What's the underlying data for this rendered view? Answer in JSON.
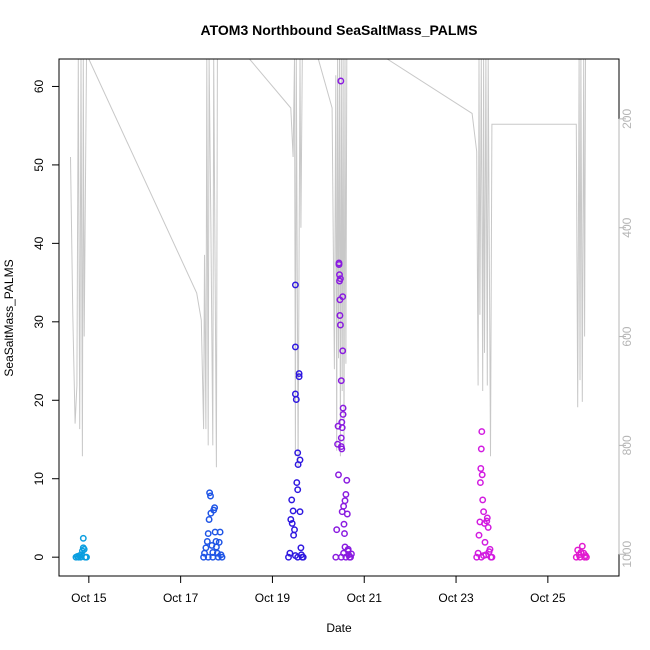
{
  "chart_data": {
    "type": "scatter",
    "title": "ATOM3 Northbound SeaSaltMass_PALMS",
    "xlabel": "Date",
    "ylabel": "SeaSaltMass_PALMS",
    "x_ticks": [
      "Oct 15",
      "Oct 17",
      "Oct 19",
      "Oct 21",
      "Oct 23",
      "Oct 25"
    ],
    "y_ticks": [
      0,
      10,
      20,
      30,
      40,
      50,
      60
    ],
    "y_right_ticks": [
      200,
      400,
      600,
      800,
      1000
    ],
    "xlim": [
      14.35,
      26.55
    ],
    "ylim": [
      -2.4,
      63.5
    ],
    "y_right_lim": [
      1040,
      90
    ],
    "colors": {
      "altitude_line": "#c8c8c8",
      "right_axis": "#b5b5b5",
      "axis": "#000000",
      "day1": "#0a9ee0",
      "day2": "#1f55e6",
      "day3": "#2f18e0",
      "day4": "#8a1be0",
      "day5": "#d21be0",
      "day6": "#e11ad0"
    },
    "series": [
      {
        "color_key": "day1",
        "points": [
          [
            14.72,
            0
          ],
          [
            14.75,
            0.1
          ],
          [
            14.78,
            0
          ],
          [
            14.8,
            0.2
          ],
          [
            14.82,
            0
          ],
          [
            14.84,
            0.3
          ],
          [
            14.86,
            0.8
          ],
          [
            14.88,
            1.2
          ],
          [
            14.88,
            2.4
          ],
          [
            14.9,
            1.0
          ],
          [
            14.92,
            0
          ],
          [
            14.95,
            0
          ]
        ]
      },
      {
        "color_key": "day2",
        "points": [
          [
            17.5,
            0
          ],
          [
            17.52,
            0.5
          ],
          [
            17.55,
            1.2
          ],
          [
            17.58,
            2.0
          ],
          [
            17.6,
            3.0
          ],
          [
            17.62,
            4.8
          ],
          [
            17.63,
            8.2
          ],
          [
            17.65,
            7.8
          ],
          [
            17.66,
            5.6
          ],
          [
            17.68,
            1.5
          ],
          [
            17.7,
            0
          ],
          [
            17.72,
            6.0
          ],
          [
            17.74,
            6.3
          ],
          [
            17.75,
            3.2
          ],
          [
            17.77,
            2.0
          ],
          [
            17.78,
            1.3
          ],
          [
            17.8,
            0.5
          ],
          [
            17.82,
            0
          ],
          [
            17.84,
            1.9
          ],
          [
            17.86,
            3.2
          ],
          [
            17.88,
            0.3
          ],
          [
            17.9,
            0
          ],
          [
            17.6,
            0
          ],
          [
            17.7,
            0.6
          ]
        ]
      },
      {
        "color_key": "day3",
        "points": [
          [
            19.35,
            0
          ],
          [
            19.38,
            0.5
          ],
          [
            19.4,
            4.8
          ],
          [
            19.42,
            7.3
          ],
          [
            19.43,
            4.3
          ],
          [
            19.45,
            5.9
          ],
          [
            19.46,
            2.8
          ],
          [
            19.48,
            3.5
          ],
          [
            19.5,
            20.8
          ],
          [
            19.5,
            34.7
          ],
          [
            19.5,
            26.8
          ],
          [
            19.52,
            20.1
          ],
          [
            19.53,
            9.5
          ],
          [
            19.55,
            13.3
          ],
          [
            19.55,
            8.6
          ],
          [
            19.56,
            11.8
          ],
          [
            19.58,
            23.4
          ],
          [
            19.58,
            23.0
          ],
          [
            19.6,
            12.4
          ],
          [
            19.6,
            5.8
          ],
          [
            19.62,
            1.2
          ],
          [
            19.63,
            0.3
          ],
          [
            19.65,
            0
          ],
          [
            19.67,
            0
          ],
          [
            19.5,
            0.2
          ],
          [
            19.55,
            0
          ]
        ]
      },
      {
        "color_key": "day4",
        "points": [
          [
            20.38,
            0
          ],
          [
            20.4,
            3.5
          ],
          [
            20.42,
            14.4
          ],
          [
            20.43,
            16.7
          ],
          [
            20.44,
            10.5
          ],
          [
            20.45,
            37.3
          ],
          [
            20.46,
            36.0
          ],
          [
            20.46,
            35.2
          ],
          [
            20.47,
            32.8
          ],
          [
            20.47,
            30.8
          ],
          [
            20.48,
            29.6
          ],
          [
            20.48,
            35.5
          ],
          [
            20.49,
            60.7
          ],
          [
            20.5,
            15.2
          ],
          [
            20.5,
            14.1
          ],
          [
            20.51,
            17.2
          ],
          [
            20.51,
            13.8
          ],
          [
            20.52,
            16.5
          ],
          [
            20.52,
            5.8
          ],
          [
            20.53,
            33.2
          ],
          [
            20.53,
            26.3
          ],
          [
            20.54,
            19.0
          ],
          [
            20.54,
            18.2
          ],
          [
            20.55,
            6.5
          ],
          [
            20.56,
            4.2
          ],
          [
            20.57,
            3.0
          ],
          [
            20.58,
            7.2
          ],
          [
            20.6,
            8.0
          ],
          [
            20.62,
            9.8
          ],
          [
            20.63,
            5.5
          ],
          [
            20.65,
            1.0
          ],
          [
            20.66,
            0.3
          ],
          [
            20.68,
            0
          ],
          [
            20.7,
            0
          ],
          [
            20.72,
            0.4
          ],
          [
            20.5,
            0
          ],
          [
            20.55,
            0.5
          ],
          [
            20.6,
            0
          ],
          [
            20.65,
            0.8
          ],
          [
            20.58,
            1.3
          ],
          [
            20.45,
            37.5
          ],
          [
            20.5,
            22.5
          ]
        ]
      },
      {
        "color_key": "day5",
        "points": [
          [
            23.45,
            0
          ],
          [
            23.48,
            0.5
          ],
          [
            23.5,
            2.8
          ],
          [
            23.52,
            4.5
          ],
          [
            23.53,
            9.5
          ],
          [
            23.54,
            11.3
          ],
          [
            23.55,
            13.8
          ],
          [
            23.56,
            16.0
          ],
          [
            23.57,
            10.5
          ],
          [
            23.58,
            7.3
          ],
          [
            23.6,
            5.8
          ],
          [
            23.62,
            4.3
          ],
          [
            23.63,
            1.9
          ],
          [
            23.65,
            0.3
          ],
          [
            23.67,
            4.6
          ],
          [
            23.68,
            5.0
          ],
          [
            23.7,
            3.8
          ],
          [
            23.72,
            0.7
          ],
          [
            23.74,
            1.0
          ],
          [
            23.76,
            0
          ],
          [
            23.78,
            0
          ],
          [
            23.55,
            0
          ],
          [
            23.6,
            0.2
          ]
        ]
      },
      {
        "color_key": "day6",
        "points": [
          [
            25.62,
            0
          ],
          [
            25.65,
            0.9
          ],
          [
            25.68,
            0.3
          ],
          [
            25.7,
            0
          ],
          [
            25.72,
            0.6
          ],
          [
            25.75,
            1.4
          ],
          [
            25.78,
            0.5
          ],
          [
            25.8,
            0
          ],
          [
            25.82,
            0.2
          ],
          [
            25.84,
            0
          ]
        ]
      }
    ],
    "altitude_track": [
      [
        14.6,
        270
      ],
      [
        14.65,
        560
      ],
      [
        14.7,
        760
      ],
      [
        14.74,
        690
      ],
      [
        14.77,
        70
      ],
      [
        14.8,
        770
      ],
      [
        14.83,
        90
      ],
      [
        14.86,
        820
      ],
      [
        14.88,
        70
      ],
      [
        14.9,
        600
      ],
      [
        14.95,
        70
      ],
      [
        15.0,
        70
      ],
      [
        17.35,
        520
      ],
      [
        17.45,
        570
      ],
      [
        17.5,
        770
      ],
      [
        17.52,
        450
      ],
      [
        17.55,
        770
      ],
      [
        17.57,
        90
      ],
      [
        17.6,
        800
      ],
      [
        17.62,
        70
      ],
      [
        17.66,
        400
      ],
      [
        17.7,
        800
      ],
      [
        17.72,
        70
      ],
      [
        17.78,
        840
      ],
      [
        17.8,
        70
      ],
      [
        17.85,
        70
      ],
      [
        18.5,
        70
      ],
      [
        19.4,
        180
      ],
      [
        19.45,
        270
      ],
      [
        19.48,
        70
      ],
      [
        19.5,
        820
      ],
      [
        19.52,
        70
      ],
      [
        19.56,
        840
      ],
      [
        19.6,
        70
      ],
      [
        19.62,
        400
      ],
      [
        19.65,
        70
      ],
      [
        20.0,
        70
      ],
      [
        20.3,
        180
      ],
      [
        20.35,
        660
      ],
      [
        20.38,
        120
      ],
      [
        20.4,
        810
      ],
      [
        20.42,
        70
      ],
      [
        20.44,
        640
      ],
      [
        20.46,
        70
      ],
      [
        20.48,
        820
      ],
      [
        20.5,
        70
      ],
      [
        20.52,
        700
      ],
      [
        20.54,
        70
      ],
      [
        20.56,
        800
      ],
      [
        20.58,
        70
      ],
      [
        20.6,
        650
      ],
      [
        20.62,
        70
      ],
      [
        20.65,
        70
      ],
      [
        21.5,
        70
      ],
      [
        23.35,
        190
      ],
      [
        23.45,
        260
      ],
      [
        23.48,
        690
      ],
      [
        23.5,
        70
      ],
      [
        23.52,
        560
      ],
      [
        23.55,
        70
      ],
      [
        23.58,
        700
      ],
      [
        23.6,
        70
      ],
      [
        23.62,
        630
      ],
      [
        23.65,
        70
      ],
      [
        23.68,
        690
      ],
      [
        23.7,
        70
      ],
      [
        23.75,
        820
      ],
      [
        23.78,
        210
      ],
      [
        23.8,
        210
      ],
      [
        24.5,
        210
      ],
      [
        25.5,
        210
      ],
      [
        25.62,
        210
      ],
      [
        25.65,
        730
      ],
      [
        25.68,
        70
      ],
      [
        25.7,
        680
      ],
      [
        25.72,
        70
      ],
      [
        25.75,
        720
      ],
      [
        25.78,
        70
      ],
      [
        25.8,
        600
      ],
      [
        25.82,
        70
      ]
    ]
  }
}
